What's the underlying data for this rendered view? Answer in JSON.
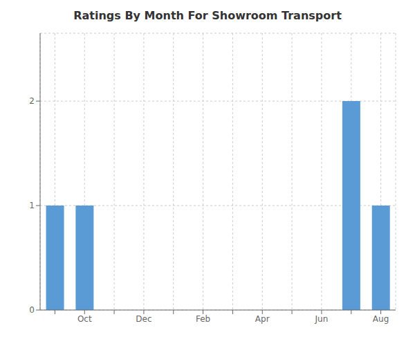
{
  "chart_data": {
    "type": "bar",
    "title": "Ratings By Month For Showroom Transport",
    "categories": [
      null,
      "Oct",
      null,
      "Dec",
      null,
      "Feb",
      null,
      "Apr",
      null,
      "Jun",
      null,
      "Aug"
    ],
    "values": [
      1,
      1,
      null,
      null,
      null,
      null,
      null,
      null,
      null,
      null,
      2,
      1
    ],
    "color": "#5b9bd5",
    "ylim": [
      0,
      2.65
    ],
    "yticks": [
      0,
      1,
      2
    ],
    "grid": true
  }
}
